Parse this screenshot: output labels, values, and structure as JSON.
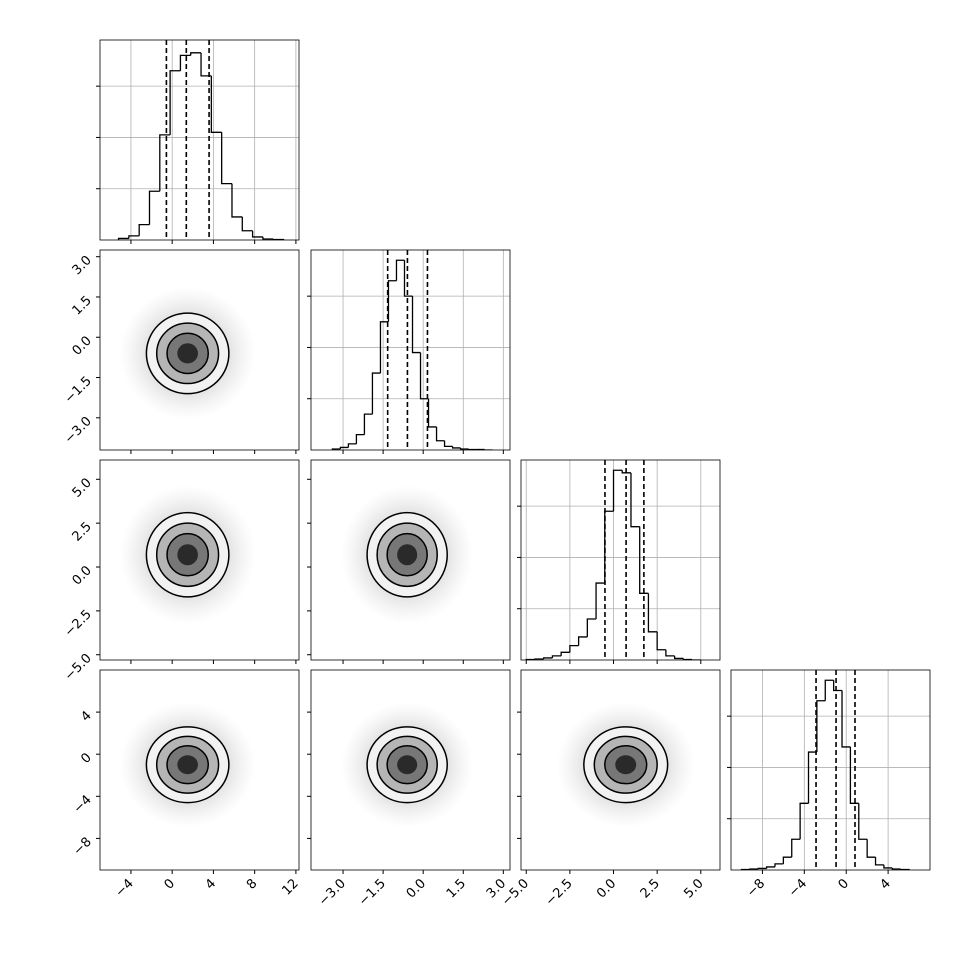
{
  "chart_data": {
    "type": "corner",
    "contour_levels": [
      0.5,
      1.0,
      1.5,
      2.0
    ],
    "hist_ylim": [
      0,
      390
    ],
    "hist_yticks": [
      100,
      200,
      300
    ],
    "params": [
      {
        "mean": 1.5,
        "sd": 2.0,
        "lim": [
          -7,
          12.3
        ],
        "ticks": [
          -4,
          0,
          4,
          8,
          12
        ],
        "tick_labels": [
          "−4",
          "0",
          "4",
          "8",
          "12"
        ],
        "quantiles": [
          -0.56,
          1.37,
          3.58
        ],
        "bins": [
          -5.2,
          -4.2,
          -3.2,
          -2.2,
          -1.2,
          -0.2,
          0.8,
          1.8,
          2.8,
          3.8,
          4.8,
          5.8,
          6.8,
          7.8,
          8.8,
          9.8,
          10.8
        ],
        "counts": [
          3,
          8,
          30,
          95,
          205,
          330,
          360,
          365,
          320,
          210,
          110,
          45,
          18,
          6,
          2,
          1
        ]
      },
      {
        "mean": -0.6,
        "sd": 0.75,
        "lim": [
          -4.2,
          3.25
        ],
        "ticks": [
          -3.0,
          -1.5,
          0.0,
          1.5,
          3.0
        ],
        "tick_labels": [
          "−3.0",
          "−1.5",
          "0.0",
          "1.5",
          "3.0"
        ],
        "quantiles": [
          -1.33,
          -0.59,
          0.16
        ],
        "bins": [
          -3.4,
          -3.1,
          -2.8,
          -2.5,
          -2.2,
          -1.9,
          -1.6,
          -1.3,
          -1.0,
          -0.7,
          -0.4,
          -0.1,
          0.2,
          0.5,
          0.8,
          1.1,
          1.4,
          1.7,
          2.0,
          2.3,
          2.6
        ],
        "counts": [
          2,
          5,
          12,
          30,
          70,
          150,
          250,
          330,
          370,
          300,
          190,
          100,
          45,
          18,
          7,
          4,
          2,
          1,
          1,
          0
        ]
      },
      {
        "mean": 0.7,
        "sd": 1.2,
        "lim": [
          -5.3,
          6.1
        ],
        "ticks": [
          -5.0,
          -2.5,
          0.0,
          2.5,
          5.0
        ],
        "tick_labels": [
          "−5.0",
          "−2.5",
          "0.0",
          "2.5",
          "5.0"
        ],
        "quantiles": [
          -0.49,
          0.72,
          1.74
        ],
        "bins": [
          -5.0,
          -4.5,
          -4.0,
          -3.5,
          -3.0,
          -2.5,
          -2.0,
          -1.5,
          -1.0,
          -0.5,
          0.0,
          0.5,
          1.0,
          1.5,
          2.0,
          2.5,
          3.0,
          3.5,
          4.0,
          4.5,
          5.0
        ],
        "counts": [
          1,
          2,
          4,
          8,
          15,
          28,
          45,
          80,
          150,
          290,
          370,
          365,
          260,
          130,
          55,
          20,
          8,
          3,
          1,
          0
        ]
      },
      {
        "mean": -1.0,
        "sd": 1.8,
        "lim": [
          -11,
          8
        ],
        "ticks": [
          -8,
          -4,
          0,
          4
        ],
        "tick_labels": [
          "−8",
          "−4",
          "0",
          "4"
        ],
        "quantiles": [
          -2.88,
          -0.97,
          0.84
        ],
        "bins": [
          -10.0,
          -9.2,
          -8.4,
          -7.6,
          -6.8,
          -6.0,
          -5.2,
          -4.4,
          -3.6,
          -2.8,
          -2.0,
          -1.2,
          -0.4,
          0.4,
          1.2,
          2.0,
          2.8,
          3.6,
          4.4,
          5.2,
          6.0
        ],
        "counts": [
          1,
          2,
          3,
          6,
          12,
          25,
          60,
          130,
          230,
          330,
          370,
          350,
          240,
          130,
          60,
          25,
          10,
          4,
          2,
          1
        ]
      }
    ]
  }
}
